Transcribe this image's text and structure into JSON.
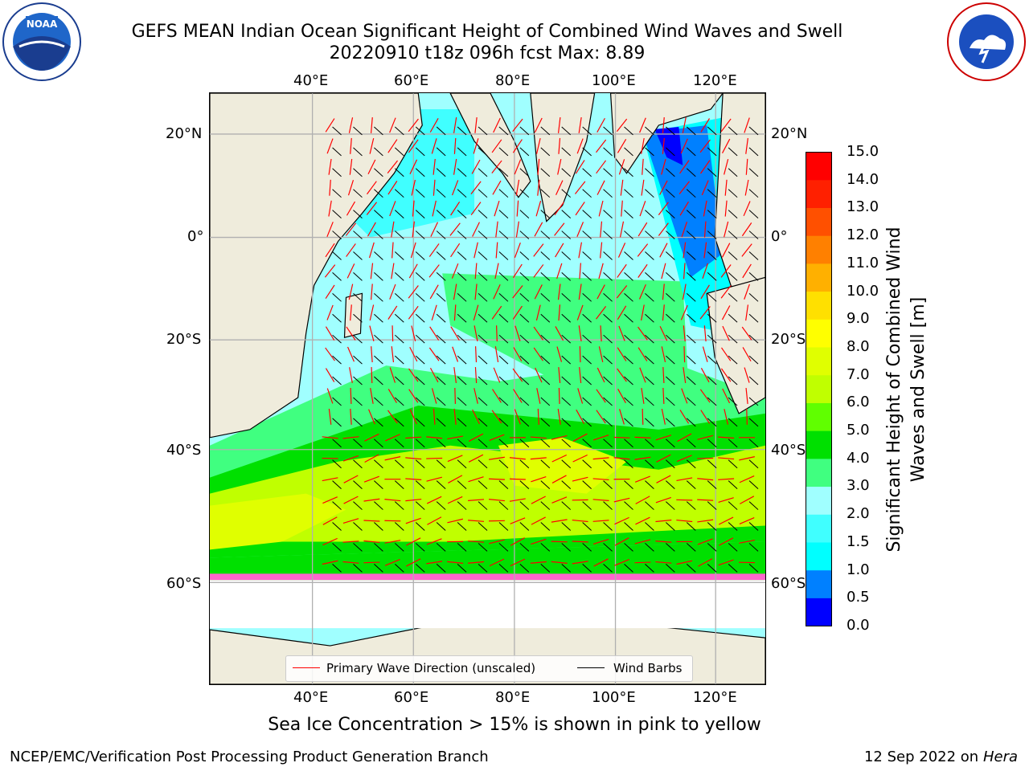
{
  "header": {
    "title": "GEFS MEAN Indian Ocean Significant Height of Combined Wind Waves and Swell",
    "subtitle": "20220910 t18z 096h fcst   Max: 8.89"
  },
  "logos": {
    "left": "NOAA logo",
    "right": "NATIONAL WEATHER SERVICE logo"
  },
  "map": {
    "lon_ticks": [
      "40°E",
      "60°E",
      "80°E",
      "100°E",
      "120°E"
    ],
    "lat_ticks": [
      "20°N",
      "0°",
      "20°S",
      "40°S",
      "60°S"
    ],
    "land_color": "#efecdc",
    "grid_color": "#b0b0b0"
  },
  "colorbar": {
    "label": "Significant Height of Combined Wind Waves and Swell [m]",
    "ticks": [
      "0.0",
      "0.5",
      "1.0",
      "1.5",
      "2.0",
      "3.0",
      "4.0",
      "5.0",
      "6.0",
      "7.0",
      "8.0",
      "9.0",
      "10.0",
      "11.0",
      "12.0",
      "13.0",
      "14.0",
      "15.0"
    ],
    "colors": [
      "#0000ff",
      "#0080ff",
      "#00ffff",
      "#40ffff",
      "#a0ffff",
      "#40ff80",
      "#00e000",
      "#60ff00",
      "#c0ff00",
      "#e0ff00",
      "#ffff00",
      "#ffe000",
      "#ffb000",
      "#ff8000",
      "#ff5000",
      "#ff2000",
      "#ff0000"
    ]
  },
  "legend": {
    "wave_label": "Primary Wave Direction (unscaled)",
    "wind_label": "Wind Barbs",
    "wave_color": "#ff0000",
    "wind_color": "#000000"
  },
  "footer": {
    "note": "Sea Ice Concentration > 15% is shown in pink to yellow",
    "credit": "NCEP/EMC/Verification Post Processing Product Generation Branch",
    "date": "12 Sep 2022 on",
    "host": "Hera"
  }
}
